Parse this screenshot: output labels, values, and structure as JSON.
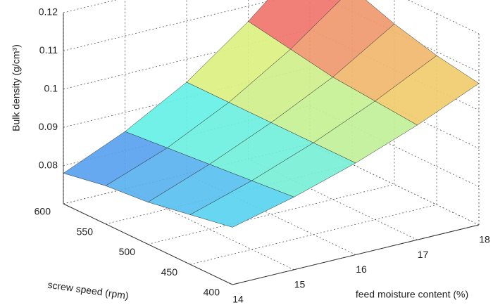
{
  "chart_data": {
    "type": "surface",
    "x_label": "feed moisture content (%)",
    "y_label": "screw speed (rpm)",
    "z_label": "Bulk density (g/cm³)",
    "x": [
      14,
      15,
      16,
      17,
      18
    ],
    "y": [
      400,
      450,
      500,
      550,
      600
    ],
    "z": [
      [
        0.085,
        0.089,
        0.094,
        0.1,
        0.107
      ],
      [
        0.083,
        0.088,
        0.094,
        0.101,
        0.109
      ],
      [
        0.081,
        0.087,
        0.094,
        0.102,
        0.112
      ],
      [
        0.08,
        0.086,
        0.094,
        0.104,
        0.116
      ],
      [
        0.078,
        0.085,
        0.094,
        0.106,
        0.12
      ]
    ],
    "xlim": [
      14,
      18
    ],
    "xticks": [
      14,
      15,
      16,
      17,
      18
    ],
    "ylim": [
      400,
      600
    ],
    "yticks": [
      400,
      450,
      500,
      550,
      600
    ],
    "zlim": [
      0.07,
      0.12
    ],
    "zticks": [
      0.08,
      0.09,
      0.1,
      0.11,
      0.12
    ],
    "grid": true
  }
}
